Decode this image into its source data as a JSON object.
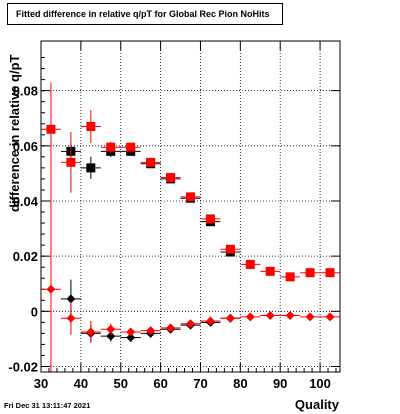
{
  "chart_data": {
    "type": "scatter",
    "title": "Fitted difference in relative q/pT for Global Rec Pion NoHits",
    "xlabel": "Quality",
    "ylabel": "difference in relative q/pT",
    "timestamp": "Fri Dec 31 13:11:47 2021",
    "xlim": [
      30,
      105
    ],
    "ylim": [
      -0.022,
      0.098
    ],
    "x_ticks": [
      30,
      40,
      50,
      60,
      70,
      80,
      90,
      100
    ],
    "x_tick_labels": [
      "30",
      "40",
      "50",
      "60",
      "70",
      "80",
      "90",
      "100"
    ],
    "y_ticks": [
      -0.02,
      0,
      0.02,
      0.04,
      0.06,
      0.08
    ],
    "y_tick_labels": [
      "-0.02",
      "0",
      "0.02",
      "0.04",
      "0.06",
      "0.08"
    ],
    "grid": true,
    "x_half_width": 2.5,
    "series": [
      {
        "marker": "square",
        "color": "#000000",
        "points": [
          {
            "x": 37.5,
            "y": 0.058,
            "err": 0.003
          },
          {
            "x": 42.5,
            "y": 0.052,
            "err": 0.004
          },
          {
            "x": 47.5,
            "y": 0.058,
            "err": 0.002
          },
          {
            "x": 52.5,
            "y": 0.058,
            "err": 0.0015
          },
          {
            "x": 57.5,
            "y": 0.0535,
            "err": 0.001
          },
          {
            "x": 62.5,
            "y": 0.048,
            "err": 0.001
          },
          {
            "x": 67.5,
            "y": 0.041,
            "err": 0.001
          },
          {
            "x": 72.5,
            "y": 0.0325,
            "err": 0.001
          },
          {
            "x": 77.5,
            "y": 0.0215,
            "err": 0.001
          }
        ]
      },
      {
        "marker": "square",
        "color": "#ff0000",
        "points": [
          {
            "x": 32.5,
            "y": 0.066,
            "err": 0.0
          },
          {
            "x": 37.5,
            "y": 0.054,
            "err": 0.011
          },
          {
            "x": 42.5,
            "y": 0.067,
            "err": 0.006
          },
          {
            "x": 47.5,
            "y": 0.0595,
            "err": 0.002
          },
          {
            "x": 52.5,
            "y": 0.0595,
            "err": 0.0015
          },
          {
            "x": 57.5,
            "y": 0.054,
            "err": 0.001
          },
          {
            "x": 62.5,
            "y": 0.0485,
            "err": 0.001
          },
          {
            "x": 67.5,
            "y": 0.0415,
            "err": 0.001
          },
          {
            "x": 72.5,
            "y": 0.0335,
            "err": 0.001
          },
          {
            "x": 77.5,
            "y": 0.0225,
            "err": 0.001
          },
          {
            "x": 82.5,
            "y": 0.017,
            "err": 0.001
          },
          {
            "x": 87.5,
            "y": 0.0145,
            "err": 0.001
          },
          {
            "x": 92.5,
            "y": 0.0125,
            "err": 0.001
          },
          {
            "x": 97.5,
            "y": 0.014,
            "err": 0.001
          },
          {
            "x": 102.5,
            "y": 0.014,
            "err": 0.001
          }
        ]
      },
      {
        "marker": "diamond",
        "color": "#000000",
        "points": [
          {
            "x": 37.5,
            "y": 0.0045,
            "err": 0.007
          },
          {
            "x": 42.5,
            "y": -0.008,
            "err": 0.003
          },
          {
            "x": 47.5,
            "y": -0.009,
            "err": 0.002
          },
          {
            "x": 52.5,
            "y": -0.0095,
            "err": 0.0015
          },
          {
            "x": 57.5,
            "y": -0.008,
            "err": 0.001
          },
          {
            "x": 62.5,
            "y": -0.0065,
            "err": 0.001
          },
          {
            "x": 67.5,
            "y": -0.005,
            "err": 0.001
          },
          {
            "x": 72.5,
            "y": -0.004,
            "err": 0.001
          },
          {
            "x": 77.5,
            "y": -0.0025,
            "err": 0.001
          }
        ]
      },
      {
        "marker": "diamond",
        "color": "#ff0000",
        "points": [
          {
            "x": 32.5,
            "y": 0.008,
            "err": 0.075
          },
          {
            "x": 37.5,
            "y": -0.0025,
            "err": 0.006
          },
          {
            "x": 42.5,
            "y": -0.0075,
            "err": 0.004
          },
          {
            "x": 47.5,
            "y": -0.0065,
            "err": 0.002
          },
          {
            "x": 52.5,
            "y": -0.0075,
            "err": 0.0015
          },
          {
            "x": 57.5,
            "y": -0.007,
            "err": 0.001
          },
          {
            "x": 62.5,
            "y": -0.006,
            "err": 0.001
          },
          {
            "x": 67.5,
            "y": -0.0045,
            "err": 0.001
          },
          {
            "x": 72.5,
            "y": -0.0035,
            "err": 0.001
          },
          {
            "x": 77.5,
            "y": -0.0025,
            "err": 0.001
          },
          {
            "x": 82.5,
            "y": -0.002,
            "err": 0.001
          },
          {
            "x": 87.5,
            "y": -0.0015,
            "err": 0.001
          },
          {
            "x": 92.5,
            "y": -0.0015,
            "err": 0.001
          },
          {
            "x": 97.5,
            "y": -0.002,
            "err": 0.001
          },
          {
            "x": 102.5,
            "y": -0.002,
            "err": 0.001
          }
        ]
      }
    ]
  }
}
